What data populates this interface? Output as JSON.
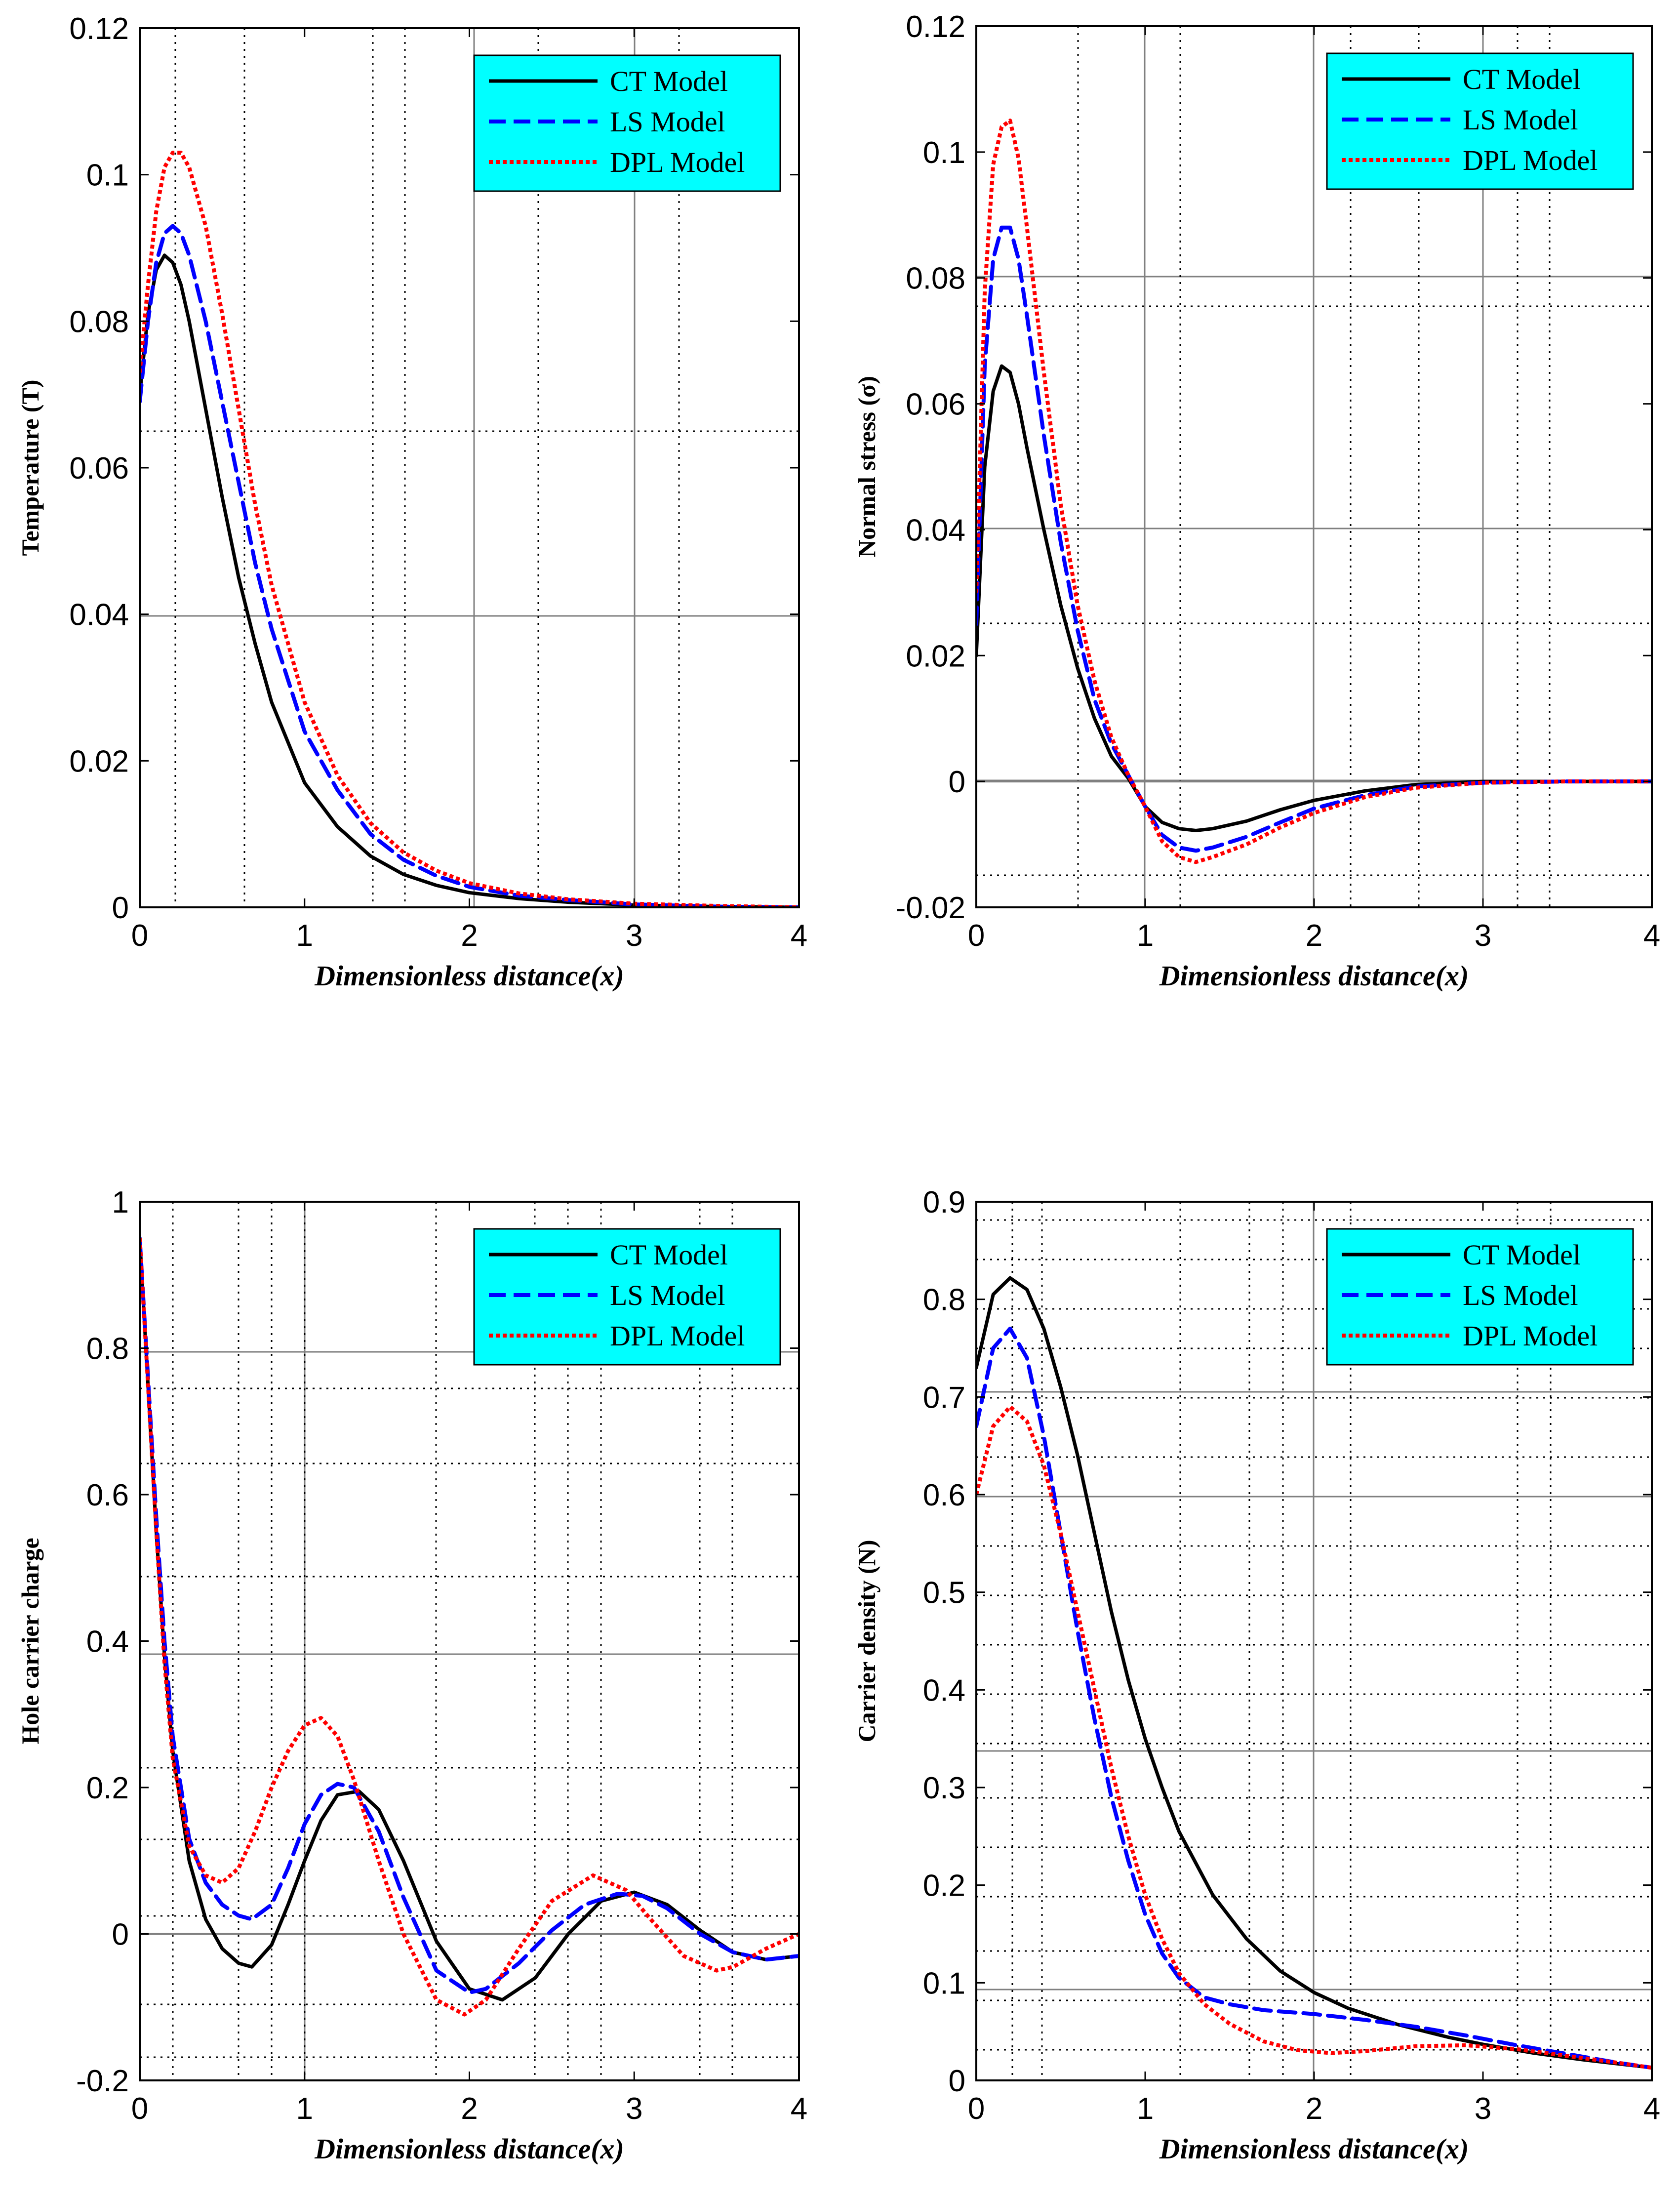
{
  "colors": {
    "ct": "#000000",
    "ls": "#0000ff",
    "dpl": "#ff0000",
    "legend_bg": "#00ffff",
    "grid_solid": "#808080",
    "grid_dotted": "#000000"
  },
  "legend": {
    "ct": "CT Model",
    "ls": "LS Model",
    "dpl": "DPL Model"
  },
  "chart_data": [
    {
      "type": "line",
      "id": "temperature",
      "xlabel": "Dimensionless distance(x)",
      "ylabel": "Temperature (T)",
      "xlim": [
        0,
        4
      ],
      "ylim": [
        0,
        0.12
      ],
      "xticks": [
        0,
        1,
        2,
        3,
        4
      ],
      "xtick_labels": [
        "0",
        "1",
        "2",
        "3",
        "4"
      ],
      "yticks": [
        0,
        0.02,
        0.04,
        0.06,
        0.08,
        0.1,
        0.12
      ],
      "ytick_labels": [
        "0",
        "0.02",
        "0.04",
        "0.06",
        "0.08",
        "0.1",
        "0.12"
      ],
      "legend_position": "top-right",
      "series": [
        {
          "name": "CT Model",
          "style": "solid",
          "x": [
            0,
            0.05,
            0.1,
            0.15,
            0.2,
            0.25,
            0.3,
            0.4,
            0.5,
            0.6,
            0.7,
            0.8,
            1.0,
            1.2,
            1.4,
            1.6,
            1.8,
            2.0,
            2.3,
            2.6,
            3.0,
            3.5,
            4.0
          ],
          "y": [
            0.07,
            0.081,
            0.087,
            0.089,
            0.088,
            0.085,
            0.08,
            0.068,
            0.056,
            0.045,
            0.036,
            0.028,
            0.017,
            0.011,
            0.007,
            0.0045,
            0.003,
            0.002,
            0.0012,
            0.0007,
            0.0003,
            0.0001,
            0
          ]
        },
        {
          "name": "LS Model",
          "style": "dashed",
          "x": [
            0,
            0.05,
            0.1,
            0.15,
            0.2,
            0.25,
            0.3,
            0.4,
            0.5,
            0.6,
            0.7,
            0.8,
            1.0,
            1.2,
            1.4,
            1.6,
            1.8,
            2.0,
            2.3,
            2.6,
            3.0,
            3.5,
            4.0
          ],
          "y": [
            0.069,
            0.08,
            0.088,
            0.092,
            0.093,
            0.092,
            0.089,
            0.08,
            0.069,
            0.058,
            0.047,
            0.038,
            0.024,
            0.016,
            0.01,
            0.0065,
            0.0043,
            0.0028,
            0.0016,
            0.001,
            0.0004,
            0.0001,
            0
          ]
        },
        {
          "name": "DPL Model",
          "style": "dotted",
          "x": [
            0,
            0.05,
            0.1,
            0.15,
            0.2,
            0.25,
            0.3,
            0.4,
            0.5,
            0.6,
            0.7,
            0.8,
            1.0,
            1.2,
            1.4,
            1.6,
            1.8,
            2.0,
            2.3,
            2.6,
            3.0,
            3.5,
            4.0
          ],
          "y": [
            0.073,
            0.085,
            0.095,
            0.101,
            0.103,
            0.103,
            0.101,
            0.093,
            0.081,
            0.068,
            0.055,
            0.044,
            0.028,
            0.018,
            0.0115,
            0.0075,
            0.005,
            0.0033,
            0.0019,
            0.0011,
            0.0005,
            0.0002,
            0
          ]
        }
      ]
    },
    {
      "type": "line",
      "id": "normal-stress",
      "xlabel": "Dimensionless distance(x)",
      "ylabel": "Normal stress (σ)",
      "xlim": [
        0,
        4
      ],
      "ylim": [
        -0.02,
        0.12
      ],
      "xticks": [
        0,
        1,
        2,
        3,
        4
      ],
      "xtick_labels": [
        "0",
        "1",
        "2",
        "3",
        "4"
      ],
      "yticks": [
        -0.02,
        0,
        0.02,
        0.04,
        0.06,
        0.08,
        0.1,
        0.12
      ],
      "ytick_labels": [
        "-0.02",
        "0",
        "0.02",
        "0.04",
        "0.06",
        "0.08",
        "0.1",
        "0.12"
      ],
      "legend_position": "top-right",
      "series": [
        {
          "name": "CT Model",
          "style": "solid",
          "x": [
            0,
            0.05,
            0.1,
            0.15,
            0.2,
            0.25,
            0.3,
            0.4,
            0.5,
            0.6,
            0.7,
            0.8,
            0.9,
            1.0,
            1.1,
            1.2,
            1.3,
            1.4,
            1.6,
            1.8,
            2.0,
            2.3,
            2.6,
            3.0,
            3.5,
            4.0
          ],
          "y": [
            0.02,
            0.05,
            0.062,
            0.066,
            0.065,
            0.06,
            0.053,
            0.04,
            0.028,
            0.018,
            0.01,
            0.004,
            0.0005,
            -0.004,
            -0.0065,
            -0.0075,
            -0.0078,
            -0.0075,
            -0.0063,
            -0.0045,
            -0.003,
            -0.0015,
            -0.0005,
            0,
            0,
            0
          ]
        },
        {
          "name": "LS Model",
          "style": "dashed",
          "x": [
            0,
            0.05,
            0.1,
            0.15,
            0.2,
            0.25,
            0.3,
            0.4,
            0.5,
            0.6,
            0.7,
            0.8,
            0.9,
            1.0,
            1.1,
            1.2,
            1.3,
            1.4,
            1.6,
            1.8,
            2.0,
            2.3,
            2.6,
            3.0,
            3.5,
            4.0
          ],
          "y": [
            0.025,
            0.066,
            0.083,
            0.088,
            0.088,
            0.083,
            0.074,
            0.055,
            0.038,
            0.024,
            0.013,
            0.006,
            0.001,
            -0.004,
            -0.0085,
            -0.0105,
            -0.011,
            -0.0105,
            -0.0088,
            -0.0065,
            -0.0043,
            -0.0022,
            -0.0008,
            -0.0002,
            0,
            0
          ]
        },
        {
          "name": "DPL Model",
          "style": "dotted",
          "x": [
            0,
            0.05,
            0.1,
            0.15,
            0.2,
            0.25,
            0.3,
            0.4,
            0.5,
            0.6,
            0.7,
            0.8,
            0.9,
            1.0,
            1.1,
            1.2,
            1.3,
            1.4,
            1.6,
            1.8,
            2.0,
            2.3,
            2.6,
            3.0,
            3.5,
            4.0
          ],
          "y": [
            0.03,
            0.078,
            0.098,
            0.104,
            0.105,
            0.099,
            0.088,
            0.065,
            0.044,
            0.028,
            0.016,
            0.007,
            0.001,
            -0.004,
            -0.0095,
            -0.012,
            -0.0128,
            -0.012,
            -0.01,
            -0.0073,
            -0.005,
            -0.0025,
            -0.001,
            -0.0002,
            0,
            0
          ]
        }
      ]
    },
    {
      "type": "line",
      "id": "hole-carrier-charge",
      "xlabel": "Dimensionless distance(x)",
      "ylabel": "Hole carrier charge",
      "xlim": [
        0,
        4
      ],
      "ylim": [
        -0.2,
        1
      ],
      "xticks": [
        0,
        1,
        2,
        3,
        4
      ],
      "xtick_labels": [
        "0",
        "1",
        "2",
        "3",
        "4"
      ],
      "yticks": [
        -0.2,
        0,
        0.2,
        0.4,
        0.6,
        0.8,
        1
      ],
      "ytick_labels": [
        "-0.2",
        "0",
        "0.2",
        "0.4",
        "0.6",
        "0.8",
        "1"
      ],
      "legend_position": "top-right",
      "series": [
        {
          "name": "CT Model",
          "style": "solid",
          "x": [
            0,
            0.05,
            0.1,
            0.15,
            0.2,
            0.3,
            0.4,
            0.5,
            0.6,
            0.68,
            0.8,
            0.9,
            1.0,
            1.1,
            1.2,
            1.33,
            1.45,
            1.6,
            1.8,
            2.0,
            2.2,
            2.4,
            2.6,
            2.8,
            3.0,
            3.2,
            3.4,
            3.6,
            3.8,
            4.0
          ],
          "y": [
            0.95,
            0.75,
            0.55,
            0.38,
            0.25,
            0.1,
            0.02,
            -0.02,
            -0.04,
            -0.045,
            -0.015,
            0.04,
            0.1,
            0.155,
            0.19,
            0.195,
            0.17,
            0.1,
            -0.01,
            -0.075,
            -0.09,
            -0.06,
            0.0,
            0.045,
            0.057,
            0.04,
            0.005,
            -0.025,
            -0.035,
            -0.03
          ]
        },
        {
          "name": "LS Model",
          "style": "dashed",
          "x": [
            0,
            0.05,
            0.1,
            0.15,
            0.2,
            0.3,
            0.4,
            0.5,
            0.6,
            0.68,
            0.8,
            0.9,
            1.0,
            1.1,
            1.2,
            1.3,
            1.45,
            1.6,
            1.8,
            2.0,
            2.1,
            2.3,
            2.5,
            2.7,
            2.9,
            3.05,
            3.2,
            3.4,
            3.6,
            3.8,
            4.0
          ],
          "y": [
            0.95,
            0.76,
            0.57,
            0.4,
            0.27,
            0.13,
            0.07,
            0.04,
            0.025,
            0.02,
            0.04,
            0.09,
            0.15,
            0.19,
            0.205,
            0.2,
            0.14,
            0.05,
            -0.05,
            -0.08,
            -0.075,
            -0.04,
            0.005,
            0.04,
            0.055,
            0.052,
            0.035,
            0.0,
            -0.025,
            -0.035,
            -0.03
          ]
        },
        {
          "name": "DPL Model",
          "style": "dotted",
          "x": [
            0,
            0.05,
            0.1,
            0.15,
            0.2,
            0.3,
            0.4,
            0.5,
            0.6,
            0.7,
            0.8,
            0.9,
            1.0,
            1.1,
            1.2,
            1.3,
            1.45,
            1.6,
            1.8,
            1.97,
            2.1,
            2.3,
            2.5,
            2.75,
            2.95,
            3.1,
            3.3,
            3.5,
            3.6,
            3.8,
            4.0
          ],
          "y": [
            0.95,
            0.75,
            0.55,
            0.37,
            0.24,
            0.12,
            0.08,
            0.07,
            0.09,
            0.14,
            0.2,
            0.25,
            0.285,
            0.295,
            0.27,
            0.21,
            0.1,
            0.0,
            -0.09,
            -0.11,
            -0.09,
            -0.02,
            0.045,
            0.08,
            0.06,
            0.02,
            -0.03,
            -0.05,
            -0.045,
            -0.02,
            0.0
          ]
        }
      ]
    },
    {
      "type": "line",
      "id": "carrier-density",
      "xlabel": "Dimensionless distance(x)",
      "ylabel": "Carrier density (N)",
      "xlim": [
        0,
        4
      ],
      "ylim": [
        0,
        0.9
      ],
      "xticks": [
        0,
        1,
        2,
        3,
        4
      ],
      "xtick_labels": [
        "0",
        "1",
        "2",
        "3",
        "4"
      ],
      "yticks": [
        0,
        0.1,
        0.2,
        0.3,
        0.4,
        0.5,
        0.6,
        0.7,
        0.8,
        0.9
      ],
      "ytick_labels": [
        "0",
        "0.1",
        "0.2",
        "0.3",
        "0.4",
        "0.5",
        "0.6",
        "0.7",
        "0.8",
        "0.9"
      ],
      "legend_position": "top-right",
      "series": [
        {
          "name": "CT Model",
          "style": "solid",
          "x": [
            0,
            0.1,
            0.2,
            0.3,
            0.4,
            0.5,
            0.6,
            0.7,
            0.8,
            0.9,
            1.0,
            1.1,
            1.2,
            1.4,
            1.6,
            1.8,
            2.0,
            2.2,
            2.5,
            2.8,
            3.0,
            3.3,
            3.6,
            4.0
          ],
          "y": [
            0.73,
            0.805,
            0.822,
            0.81,
            0.77,
            0.71,
            0.64,
            0.56,
            0.48,
            0.41,
            0.35,
            0.3,
            0.255,
            0.19,
            0.145,
            0.112,
            0.09,
            0.074,
            0.057,
            0.044,
            0.037,
            0.028,
            0.021,
            0.013
          ]
        },
        {
          "name": "LS Model",
          "style": "dashed",
          "x": [
            0,
            0.1,
            0.2,
            0.3,
            0.4,
            0.5,
            0.6,
            0.7,
            0.8,
            0.9,
            1.0,
            1.1,
            1.2,
            1.35,
            1.5,
            1.7,
            2.0,
            2.3,
            2.6,
            2.9,
            3.2,
            3.5,
            3.8,
            4.0
          ],
          "y": [
            0.67,
            0.75,
            0.77,
            0.74,
            0.66,
            0.56,
            0.46,
            0.37,
            0.29,
            0.225,
            0.17,
            0.13,
            0.105,
            0.085,
            0.078,
            0.072,
            0.068,
            0.062,
            0.055,
            0.046,
            0.036,
            0.027,
            0.018,
            0.013
          ]
        },
        {
          "name": "DPL Model",
          "style": "dotted",
          "x": [
            0,
            0.1,
            0.2,
            0.3,
            0.4,
            0.5,
            0.6,
            0.7,
            0.8,
            0.9,
            1.0,
            1.1,
            1.2,
            1.35,
            1.5,
            1.7,
            1.9,
            2.1,
            2.3,
            2.6,
            2.9,
            3.2,
            3.5,
            3.8,
            4.0
          ],
          "y": [
            0.6,
            0.67,
            0.69,
            0.675,
            0.63,
            0.56,
            0.48,
            0.4,
            0.32,
            0.25,
            0.19,
            0.145,
            0.11,
            0.078,
            0.058,
            0.04,
            0.031,
            0.028,
            0.03,
            0.035,
            0.036,
            0.032,
            0.025,
            0.018,
            0.013
          ]
        }
      ]
    }
  ]
}
